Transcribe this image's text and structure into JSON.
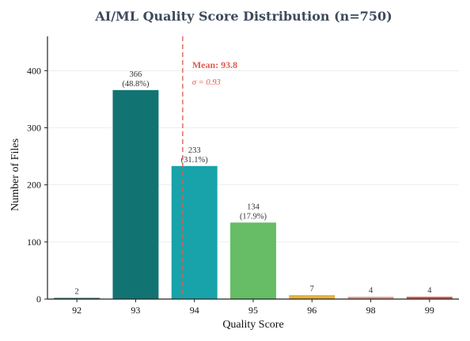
{
  "chart_data": {
    "type": "bar",
    "title": "AI/ML Quality Score Distribution (n=750)",
    "xlabel": "Quality Score",
    "ylabel": "Number of Files",
    "categories": [
      "92",
      "93",
      "94",
      "95",
      "96",
      "98",
      "99"
    ],
    "values": [
      2,
      366,
      233,
      134,
      7,
      4,
      4
    ],
    "data_labels": [
      "2",
      "366\n(48.8%)",
      "233\n(31.1%)",
      "134\n(17.9%)",
      "7",
      "4",
      "4"
    ],
    "bar_colors": [
      "#1b5e5e",
      "#127373",
      "#18a3aa",
      "#66bd66",
      "#e8b33a",
      "#e89a8c",
      "#d65a4a"
    ],
    "ylim": [
      0,
      460
    ],
    "yticks": [
      0,
      100,
      200,
      300,
      400
    ],
    "grid": true,
    "mean": {
      "value": 93.8,
      "label": "Mean: 93.8",
      "sigma_label": "σ = 0.93",
      "color": "#e05a4f"
    }
  }
}
